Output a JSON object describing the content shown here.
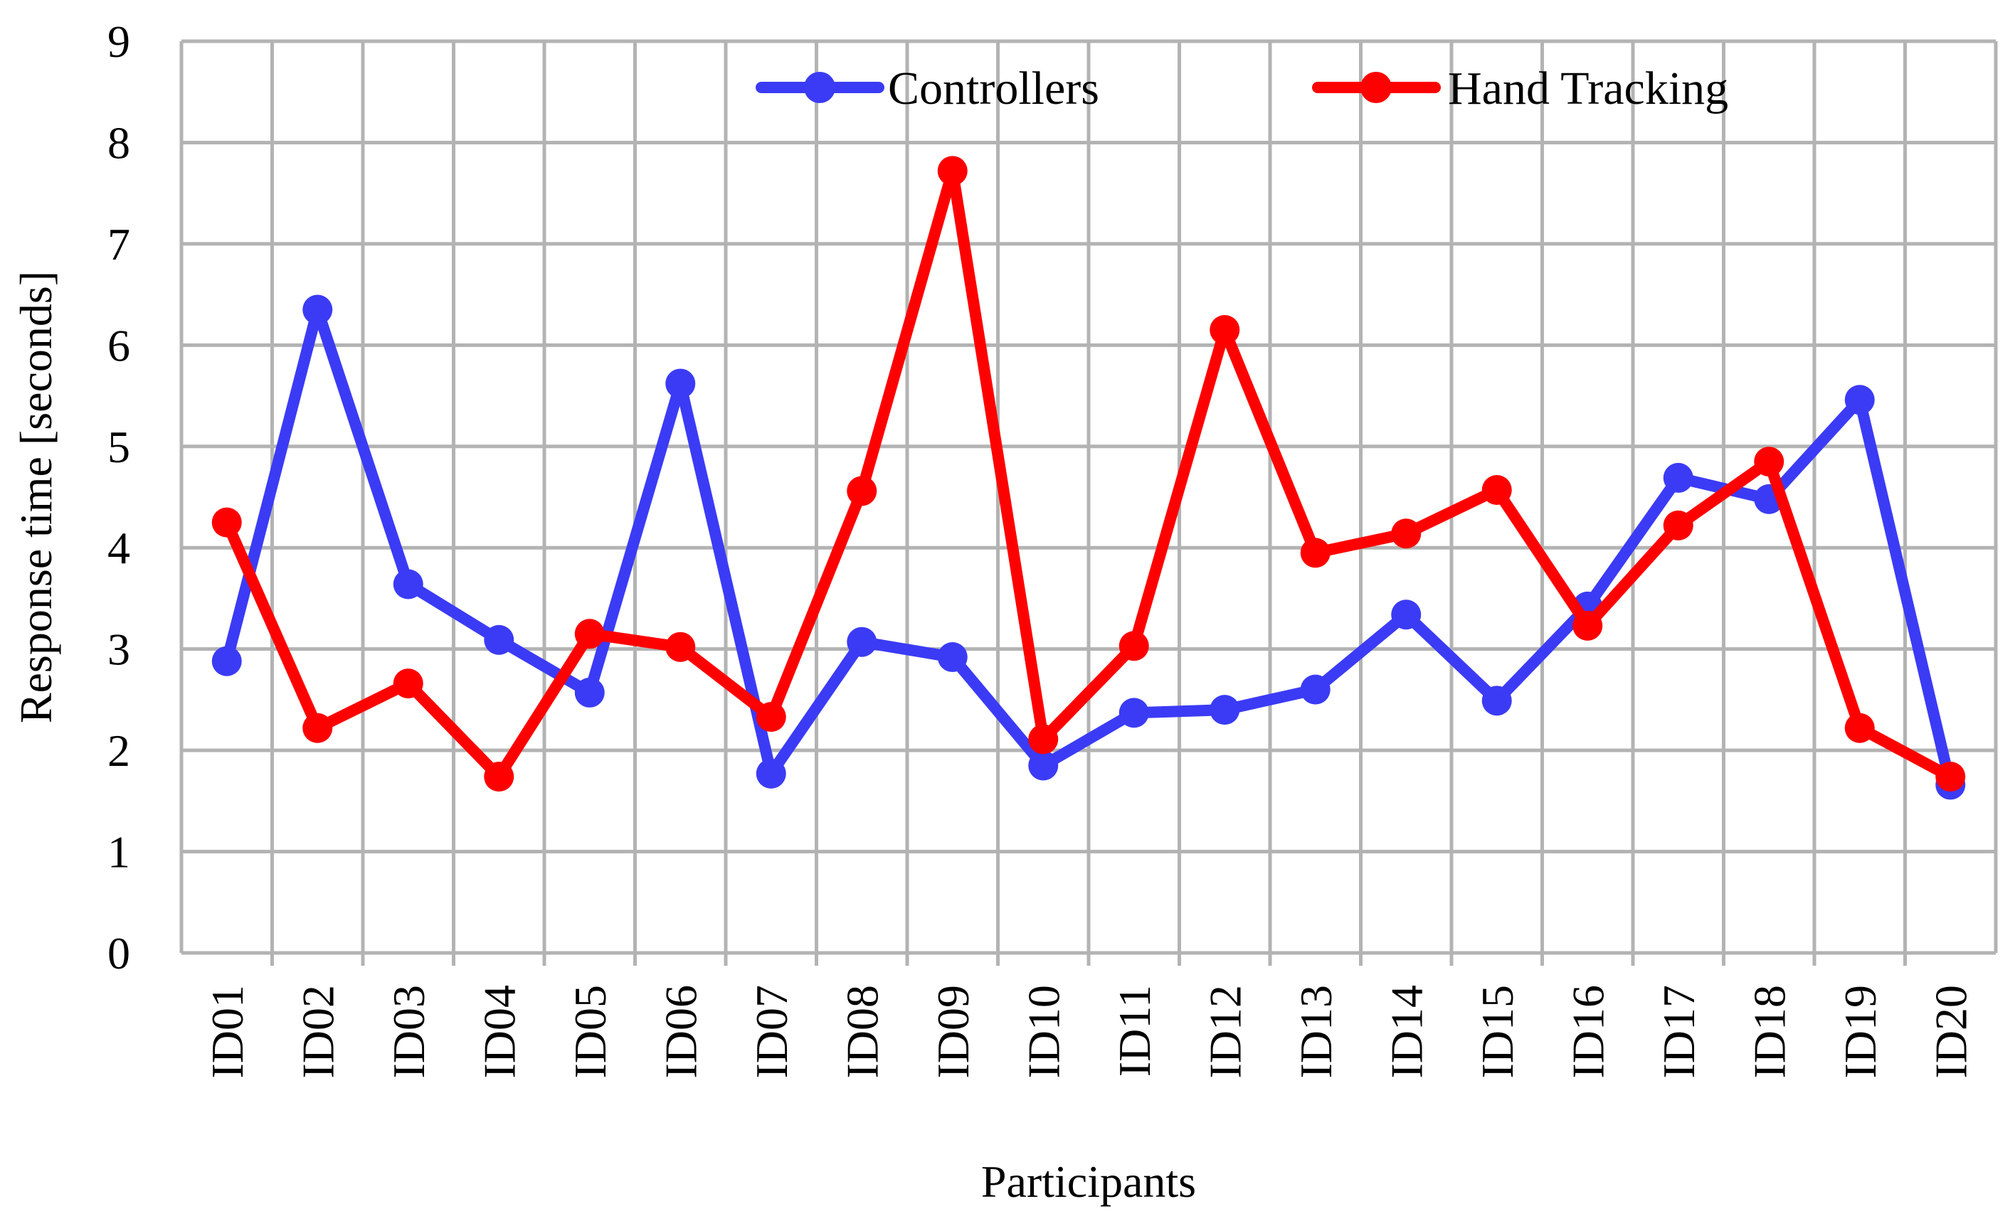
{
  "chart_data": {
    "type": "line",
    "title": "",
    "xlabel": "Participants",
    "ylabel": "Response time [seconds]",
    "ylim": [
      0,
      9
    ],
    "yticks": [
      "0",
      "1",
      "2",
      "3",
      "4",
      "5",
      "6",
      "7",
      "8",
      "9"
    ],
    "grid": true,
    "legend_position": "top-right",
    "categories": [
      "ID01",
      "ID02",
      "ID03",
      "ID04",
      "ID05",
      "ID06",
      "ID07",
      "ID08",
      "ID09",
      "ID10",
      "ID11",
      "ID12",
      "ID13",
      "ID14",
      "ID15",
      "ID16",
      "ID17",
      "ID18",
      "ID19",
      "ID20"
    ],
    "series": [
      {
        "name": "Controllers",
        "color": "#3b3bf5",
        "values": [
          2.88,
          6.35,
          3.64,
          3.09,
          2.57,
          5.62,
          1.77,
          3.07,
          2.92,
          1.85,
          2.37,
          2.4,
          2.6,
          3.34,
          2.49,
          3.42,
          4.69,
          4.48,
          5.46,
          1.66
        ]
      },
      {
        "name": "Hand Tracking",
        "color": "#ff0000",
        "values": [
          4.25,
          2.22,
          2.66,
          1.74,
          3.15,
          3.02,
          2.33,
          4.56,
          7.72,
          2.11,
          3.03,
          6.15,
          3.95,
          4.14,
          4.57,
          3.23,
          4.22,
          4.85,
          2.22,
          1.74
        ]
      }
    ]
  }
}
